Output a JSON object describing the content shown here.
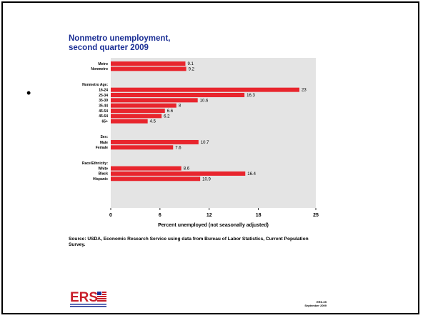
{
  "slide": {
    "bullet": "•",
    "title_line1": "Nonmetro unemployment,",
    "title_line2": "second quarter 2009",
    "source": "Source: USDA, Economic Research Service using data from Bureau of Labor Statistics, Current Population Survey.",
    "logo": "ERS",
    "slide_code": "ERS-05",
    "slide_date": "September 2009"
  },
  "colors": {
    "bar": "#e8252d",
    "plot_bg": "#e4e4e4",
    "title": "#1b2f95"
  },
  "chart_data": {
    "type": "bar",
    "orientation": "horizontal",
    "title": "Nonmetro unemployment, second quarter 2009",
    "xlabel": "Percent unemployed (not seasonally adjusted)",
    "ylabel": "",
    "xlim": [
      0,
      25
    ],
    "xticks": [
      "0",
      "6",
      "12",
      "18",
      "25"
    ],
    "grid": false,
    "groups": [
      {
        "label": "",
        "items": [
          {
            "label": "Metro",
            "value": 9.1
          },
          {
            "label": "Nonmetro",
            "value": 9.2
          }
        ]
      },
      {
        "label": "Nonmetro Age:",
        "items": [
          {
            "label": "16-24",
            "value": 23
          },
          {
            "label": "25-34",
            "value": 16.3
          },
          {
            "label": "35-39",
            "value": 10.6
          },
          {
            "label": "35-44",
            "value": 8
          },
          {
            "label": "45-54",
            "value": 6.6
          },
          {
            "label": "45-64",
            "value": 6.2
          },
          {
            "label": "65+",
            "value": 4.5
          }
        ]
      },
      {
        "label": "Sex:",
        "items": [
          {
            "label": "Male",
            "value": 10.7
          },
          {
            "label": "Female",
            "value": 7.6
          }
        ]
      },
      {
        "label": "Race/Ethnicity:",
        "items": [
          {
            "label": "White",
            "value": 8.6
          },
          {
            "label": "Black",
            "value": 16.4
          },
          {
            "label": "Hispanic",
            "value": 10.9
          }
        ]
      }
    ]
  }
}
